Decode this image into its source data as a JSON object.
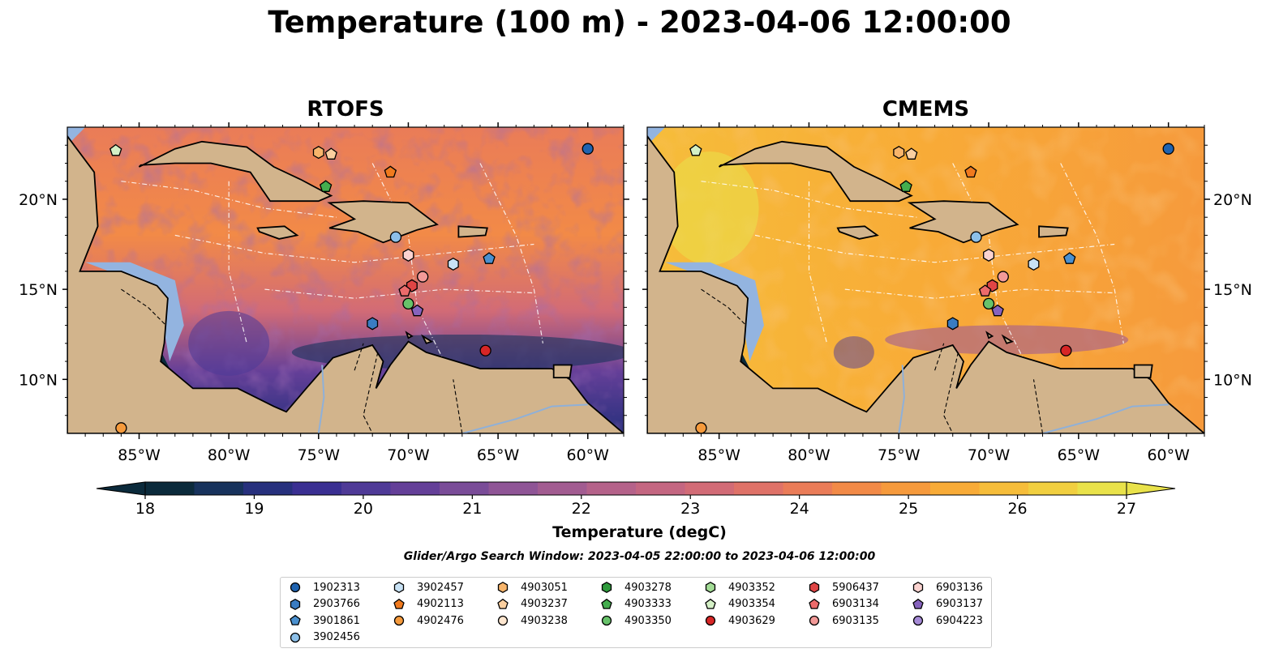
{
  "title": "Temperature (100 m) - 2023-04-06 12:00:00",
  "panels": [
    {
      "title": "RTOFS",
      "variant": "rtofs"
    },
    {
      "title": "CMEMS",
      "variant": "cmems"
    }
  ],
  "axes": {
    "lon_ticks": [
      "85°W",
      "80°W",
      "75°W",
      "70°W",
      "65°W",
      "60°W"
    ],
    "lat_ticks_left": [
      "20°N",
      "15°N",
      "10°N"
    ],
    "lat_ticks_right": [
      "20°N",
      "15°N",
      "10°N"
    ],
    "lon_range": [
      -89,
      -58
    ],
    "lat_range": [
      7,
      24
    ]
  },
  "colorbar": {
    "label": "Temperature (degC)",
    "ticks": [
      "18",
      "19",
      "20",
      "21",
      "22",
      "23",
      "24",
      "25",
      "26",
      "27"
    ],
    "range": [
      18,
      27
    ],
    "extend": "both",
    "colors": [
      "#0b2a3b",
      "#17325c",
      "#27307d",
      "#3a2f92",
      "#4f3a97",
      "#643f98",
      "#7a4c98",
      "#8f5596",
      "#a25c91",
      "#b5628a",
      "#c46681",
      "#d26b76",
      "#df7268",
      "#ea7c58",
      "#f28a47",
      "#f69a3c",
      "#f8ab37",
      "#f6bd3a",
      "#f1cf40",
      "#e9e24a"
    ]
  },
  "search_window": "Glider/Argo Search Window: 2023-04-05 22:00:00 to 2023-04-06 12:00:00",
  "legend": [
    {
      "id": "1902313",
      "marker": "circle",
      "color": "#1f63b0"
    },
    {
      "id": "2903766",
      "marker": "hexagon",
      "color": "#3a7cc2"
    },
    {
      "id": "3901861",
      "marker": "pentagon",
      "color": "#4a90cf"
    },
    {
      "id": "3902456",
      "marker": "circle",
      "color": "#8cbfe8"
    },
    {
      "id": "3902457",
      "marker": "hexagon",
      "color": "#c8e2f5"
    },
    {
      "id": "4902113",
      "marker": "pentagon",
      "color": "#f07a1e"
    },
    {
      "id": "4902476",
      "marker": "circle",
      "color": "#f59a3c"
    },
    {
      "id": "4903051",
      "marker": "hexagon",
      "color": "#f8b56b"
    },
    {
      "id": "4903237",
      "marker": "pentagon",
      "color": "#fbcf9f"
    },
    {
      "id": "4903238",
      "marker": "circle",
      "color": "#fde6cf"
    },
    {
      "id": "4903278",
      "marker": "hexagon",
      "color": "#2e9a3c"
    },
    {
      "id": "4903333",
      "marker": "pentagon",
      "color": "#44ad4e"
    },
    {
      "id": "4903350",
      "marker": "circle",
      "color": "#67c26a"
    },
    {
      "id": "4903352",
      "marker": "hexagon",
      "color": "#a3dc96"
    },
    {
      "id": "4903354",
      "marker": "pentagon",
      "color": "#d4f0c6"
    },
    {
      "id": "4903629",
      "marker": "circle",
      "color": "#d72626"
    },
    {
      "id": "5906437",
      "marker": "hexagon",
      "color": "#e04545"
    },
    {
      "id": "6903134",
      "marker": "pentagon",
      "color": "#ec6b6b"
    },
    {
      "id": "6903135",
      "marker": "circle",
      "color": "#f39a98"
    },
    {
      "id": "6903136",
      "marker": "hexagon",
      "color": "#fbd3d0"
    },
    {
      "id": "6903137",
      "marker": "pentagon",
      "color": "#8663bd"
    },
    {
      "id": "6904223",
      "marker": "circle",
      "color": "#a58ad6"
    }
  ],
  "floats": [
    {
      "id": "1902313",
      "lon": -60.0,
      "lat": 22.8
    },
    {
      "id": "4903354",
      "lon": -86.3,
      "lat": 22.7
    },
    {
      "id": "4903051",
      "lon": -75.0,
      "lat": 22.6
    },
    {
      "id": "4903237",
      "lon": -74.3,
      "lat": 22.5
    },
    {
      "id": "4902113",
      "lon": -71.0,
      "lat": 21.5
    },
    {
      "id": "4903333",
      "lon": -74.6,
      "lat": 20.7
    },
    {
      "id": "3902456",
      "lon": -70.7,
      "lat": 17.9
    },
    {
      "id": "6903136",
      "lon": -70.0,
      "lat": 16.9
    },
    {
      "id": "3902457",
      "lon": -67.5,
      "lat": 16.4
    },
    {
      "id": "3901861",
      "lon": -65.5,
      "lat": 16.7
    },
    {
      "id": "6903135",
      "lon": -69.2,
      "lat": 15.7
    },
    {
      "id": "5906437",
      "lon": -69.8,
      "lat": 15.2
    },
    {
      "id": "6903134",
      "lon": -70.2,
      "lat": 14.9
    },
    {
      "id": "4903350",
      "lon": -70.0,
      "lat": 14.2
    },
    {
      "id": "6903137",
      "lon": -69.5,
      "lat": 13.8
    },
    {
      "id": "2903766",
      "lon": -72.0,
      "lat": 13.1
    },
    {
      "id": "4903629",
      "lon": -65.7,
      "lat": 11.6
    },
    {
      "id": "4902476",
      "lon": -86.0,
      "lat": 7.3
    }
  ]
}
